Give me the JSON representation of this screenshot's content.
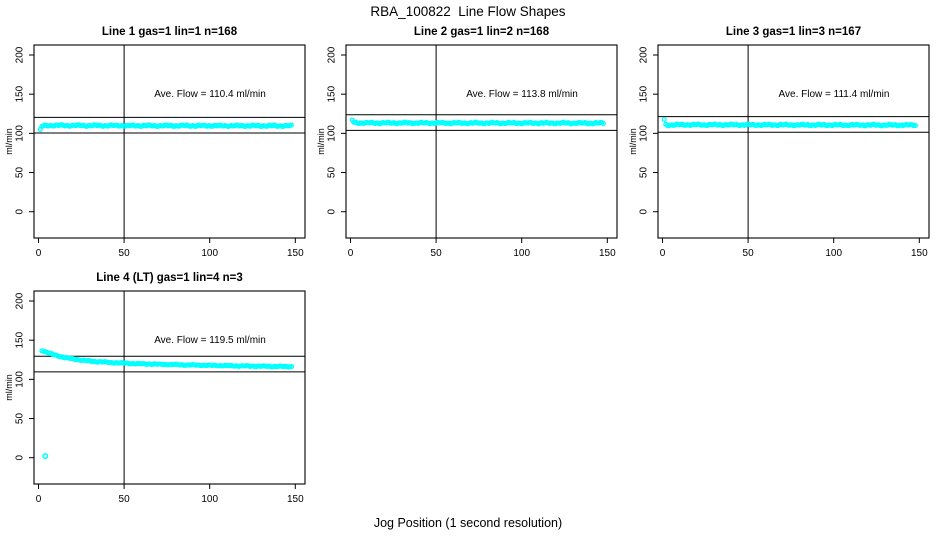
{
  "figure": {
    "title": "RBA_100822  Line Flow Shapes",
    "xlabel": "Jog Position (1 second resolution)",
    "y_axis_label": "ml/min",
    "background_color": "#ffffff"
  },
  "colors": {
    "point": "#00ffff",
    "line": "#000000",
    "text": "#000000"
  },
  "chart_data": [
    {
      "type": "scatter",
      "title": "Line 1 gas=1 lin=1 n=168",
      "n": 168,
      "ave_flow": 110.4,
      "annotation": "Ave. Flow =  110.4  ml/min",
      "x_ticks": [
        0,
        50,
        100,
        150
      ],
      "y_ticks": [
        0,
        50,
        100,
        150,
        200
      ],
      "ylim": [
        0,
        200
      ],
      "vline_x": 50,
      "ref_lines_y": [
        120.4,
        100.4
      ],
      "x_range": [
        1,
        148
      ],
      "anchors": [
        [
          1,
          104
        ],
        [
          2,
          109.3
        ],
        [
          6,
          110.1
        ],
        [
          20,
          110.0
        ],
        [
          50,
          109.8
        ],
        [
          100,
          109.7
        ],
        [
          148,
          109.6
        ]
      ],
      "jitter": 1.1,
      "outliers": []
    },
    {
      "type": "scatter",
      "title": "Line 2 gas=1 lin=2 n=168",
      "n": 168,
      "ave_flow": 113.8,
      "annotation": "Ave. Flow =  113.8  ml/min",
      "x_ticks": [
        0,
        50,
        100,
        150
      ],
      "y_ticks": [
        0,
        50,
        100,
        150,
        200
      ],
      "ylim": [
        0,
        200
      ],
      "vline_x": 50,
      "ref_lines_y": [
        123.8,
        103.8
      ],
      "x_range": [
        1,
        148
      ],
      "anchors": [
        [
          1,
          117
        ],
        [
          2,
          113.6
        ],
        [
          6,
          113.3
        ],
        [
          50,
          113.2
        ],
        [
          100,
          113.1
        ],
        [
          148,
          113.0
        ]
      ],
      "jitter": 1.1,
      "outliers": []
    },
    {
      "type": "scatter",
      "title": "Line 3 gas=1 lin=3 n=167",
      "n": 167,
      "ave_flow": 111.4,
      "annotation": "Ave. Flow =  111.4  ml/min",
      "x_ticks": [
        0,
        50,
        100,
        150
      ],
      "y_ticks": [
        0,
        50,
        100,
        150,
        200
      ],
      "ylim": [
        0,
        200
      ],
      "vline_x": 50,
      "ref_lines_y": [
        121.4,
        101.4
      ],
      "x_range": [
        1,
        148
      ],
      "anchors": [
        [
          1,
          117.5
        ],
        [
          2,
          110.4
        ],
        [
          6,
          110.9
        ],
        [
          50,
          110.8
        ],
        [
          100,
          110.6
        ],
        [
          148,
          110.5
        ]
      ],
      "jitter": 1.1,
      "outliers": []
    },
    {
      "type": "scatter",
      "title": "Line 4 (LT) gas=1 lin=4 n=3",
      "n": 3,
      "ave_flow": 119.5,
      "annotation": "Ave. Flow =  119.5  ml/min",
      "x_ticks": [
        0,
        50,
        100,
        150
      ],
      "y_ticks": [
        0,
        50,
        100,
        150,
        200
      ],
      "ylim": [
        0,
        200
      ],
      "vline_x": 50,
      "ref_lines_y": [
        129.5,
        109.5
      ],
      "x_range": [
        2,
        148
      ],
      "anchors": [
        [
          2,
          137
        ],
        [
          5,
          134.5
        ],
        [
          8,
          132
        ],
        [
          12,
          129.5
        ],
        [
          16,
          127.5
        ],
        [
          20,
          126
        ],
        [
          25,
          124.5
        ],
        [
          30,
          123.3
        ],
        [
          36,
          122.3
        ],
        [
          42,
          121.4
        ],
        [
          50,
          120.6
        ],
        [
          60,
          119.8
        ],
        [
          70,
          119.2
        ],
        [
          80,
          118.7
        ],
        [
          90,
          118.2
        ],
        [
          100,
          117.8
        ],
        [
          110,
          117.4
        ],
        [
          120,
          117.0
        ],
        [
          132,
          116.6
        ],
        [
          148,
          116.2
        ]
      ],
      "jitter": 0.7,
      "outliers": [
        [
          4,
          2
        ]
      ]
    }
  ],
  "layout_hints": {
    "grid": "2 rows x 3 cols (4 panels used)",
    "legend": "none",
    "xlim": [
      -2,
      156
    ],
    "point_style": "open circles"
  }
}
